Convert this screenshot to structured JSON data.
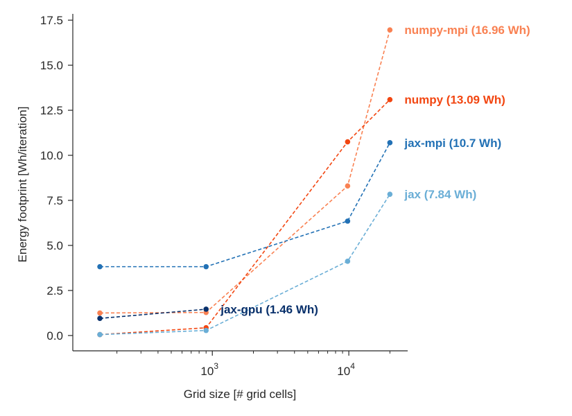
{
  "chart_data": {
    "type": "line",
    "title": "",
    "xlabel": "Grid size [# grid cells]",
    "ylabel": "Energy footprint [Wh/iteration]",
    "x_scale": "log",
    "xlim": [
      95,
      27000
    ],
    "ylim": [
      -0.85,
      17.85
    ],
    "grid": false,
    "legend": "none",
    "x_ticks": [
      {
        "value": 1000,
        "base": "10",
        "exp": "3"
      },
      {
        "value": 10000,
        "base": "10",
        "exp": "4"
      }
    ],
    "y_ticks": [
      {
        "value": 0,
        "label": "0.0"
      },
      {
        "value": 2.5,
        "label": "2.5"
      },
      {
        "value": 5,
        "label": "5.0"
      },
      {
        "value": 7.5,
        "label": "7.5"
      },
      {
        "value": 10,
        "label": "10.0"
      },
      {
        "value": 12.5,
        "label": "12.5"
      },
      {
        "value": 15,
        "label": "15.0"
      },
      {
        "value": 17.5,
        "label": "17.5"
      }
    ],
    "series": [
      {
        "name": "numpy-mpi",
        "label": "numpy-mpi (16.96 Wh)",
        "color": "#f98152",
        "x": [
          150,
          900,
          9800,
          20000
        ],
        "values": [
          1.25,
          1.28,
          8.3,
          16.96
        ]
      },
      {
        "name": "numpy",
        "label": "numpy (13.09 Wh)",
        "color": "#f24611",
        "x": [
          150,
          900,
          9800,
          20000
        ],
        "values": [
          0.05,
          0.43,
          10.75,
          13.09
        ]
      },
      {
        "name": "jax-mpi",
        "label": "jax-mpi (10.7 Wh)",
        "color": "#2271b5",
        "x": [
          150,
          900,
          9800,
          20000
        ],
        "values": [
          3.82,
          3.82,
          6.35,
          10.7
        ]
      },
      {
        "name": "jax",
        "label": "jax (7.84 Wh)",
        "color": "#6aaed6",
        "x": [
          150,
          900,
          9800,
          20000
        ],
        "values": [
          0.05,
          0.28,
          4.12,
          7.84
        ]
      },
      {
        "name": "jax-gpu",
        "label": "jax-gpu (1.46 Wh)",
        "color": "#08306b",
        "x": [
          150,
          900
        ],
        "values": [
          0.95,
          1.46
        ]
      }
    ]
  }
}
